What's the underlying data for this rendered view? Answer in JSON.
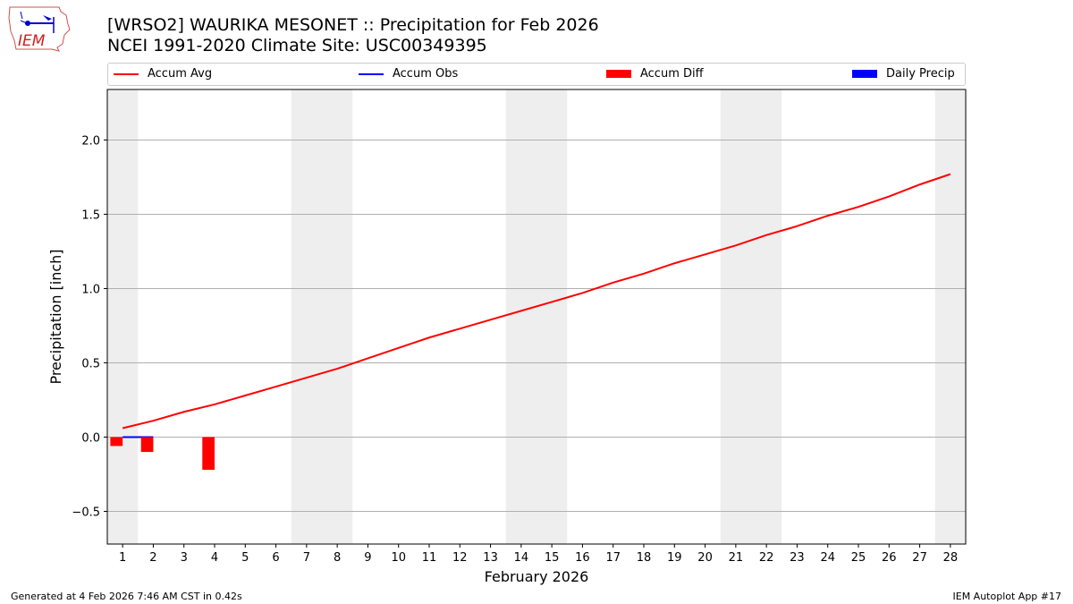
{
  "logo": {
    "text": "IEM"
  },
  "header": {
    "title": "[WRSO2] WAURIKA MESONET :: Precipitation for Feb 2026",
    "subtitle": "NCEI 1991-2020 Climate Site: USC00349395"
  },
  "legend": [
    {
      "label": "Accum Avg",
      "type": "line",
      "color": "#ff0000"
    },
    {
      "label": "Accum Obs",
      "type": "line",
      "color": "#0000ff"
    },
    {
      "label": "Accum Diff",
      "type": "bar",
      "color": "#ff0000"
    },
    {
      "label": "Daily Precip",
      "type": "bar",
      "color": "#0000ff"
    }
  ],
  "footer": {
    "left": "Generated at 4 Feb 2026 7:46 AM CST in 0.42s",
    "right": "IEM Autoplot App #17"
  },
  "chart_data": {
    "type": "line",
    "xlabel": "February 2026",
    "ylabel": "Precipitation [inch]",
    "xlim": [
      0.5,
      28.5
    ],
    "ylim": [
      -0.72,
      2.34
    ],
    "x_ticks": [
      1,
      2,
      3,
      4,
      5,
      6,
      7,
      8,
      9,
      10,
      11,
      12,
      13,
      14,
      15,
      16,
      17,
      18,
      19,
      20,
      21,
      22,
      23,
      24,
      25,
      26,
      27,
      28
    ],
    "y_ticks": [
      -0.5,
      0.0,
      0.5,
      1.0,
      1.5,
      2.0
    ],
    "y_tick_labels": [
      "−0.5",
      "0.0",
      "0.5",
      "1.0",
      "1.5",
      "2.0"
    ],
    "grid": "horizontal",
    "legend_placement": "top",
    "weekend_shading": [
      [
        0.5,
        1.5
      ],
      [
        6.5,
        8.5
      ],
      [
        13.5,
        15.5
      ],
      [
        20.5,
        22.5
      ],
      [
        27.5,
        28.5
      ]
    ],
    "shade_color": "#eeeeee",
    "series": [
      {
        "name": "Accum Avg",
        "type": "line",
        "color": "#ff0000",
        "x": [
          1,
          2,
          3,
          4,
          5,
          6,
          7,
          8,
          9,
          10,
          11,
          12,
          13,
          14,
          15,
          16,
          17,
          18,
          19,
          20,
          21,
          22,
          23,
          24,
          25,
          26,
          27,
          28
        ],
        "values": [
          0.06,
          0.11,
          0.17,
          0.22,
          0.28,
          0.34,
          0.4,
          0.46,
          0.53,
          0.6,
          0.67,
          0.73,
          0.79,
          0.85,
          0.91,
          0.97,
          1.04,
          1.1,
          1.17,
          1.23,
          1.29,
          1.36,
          1.42,
          1.49,
          1.55,
          1.62,
          1.7,
          1.77
        ]
      },
      {
        "name": "Accum Obs",
        "type": "line",
        "color": "#0000ff",
        "x": [
          1,
          2
        ],
        "values": [
          0.0,
          0.0
        ]
      },
      {
        "name": "Accum Diff",
        "type": "bar",
        "color": "#ff0000",
        "x": [
          1,
          2,
          4
        ],
        "values": [
          -0.06,
          -0.1,
          -0.22
        ]
      },
      {
        "name": "Daily Precip",
        "type": "bar",
        "color": "#0000ff",
        "x": [
          1,
          2
        ],
        "values": [
          0.0,
          0.0
        ]
      }
    ]
  }
}
